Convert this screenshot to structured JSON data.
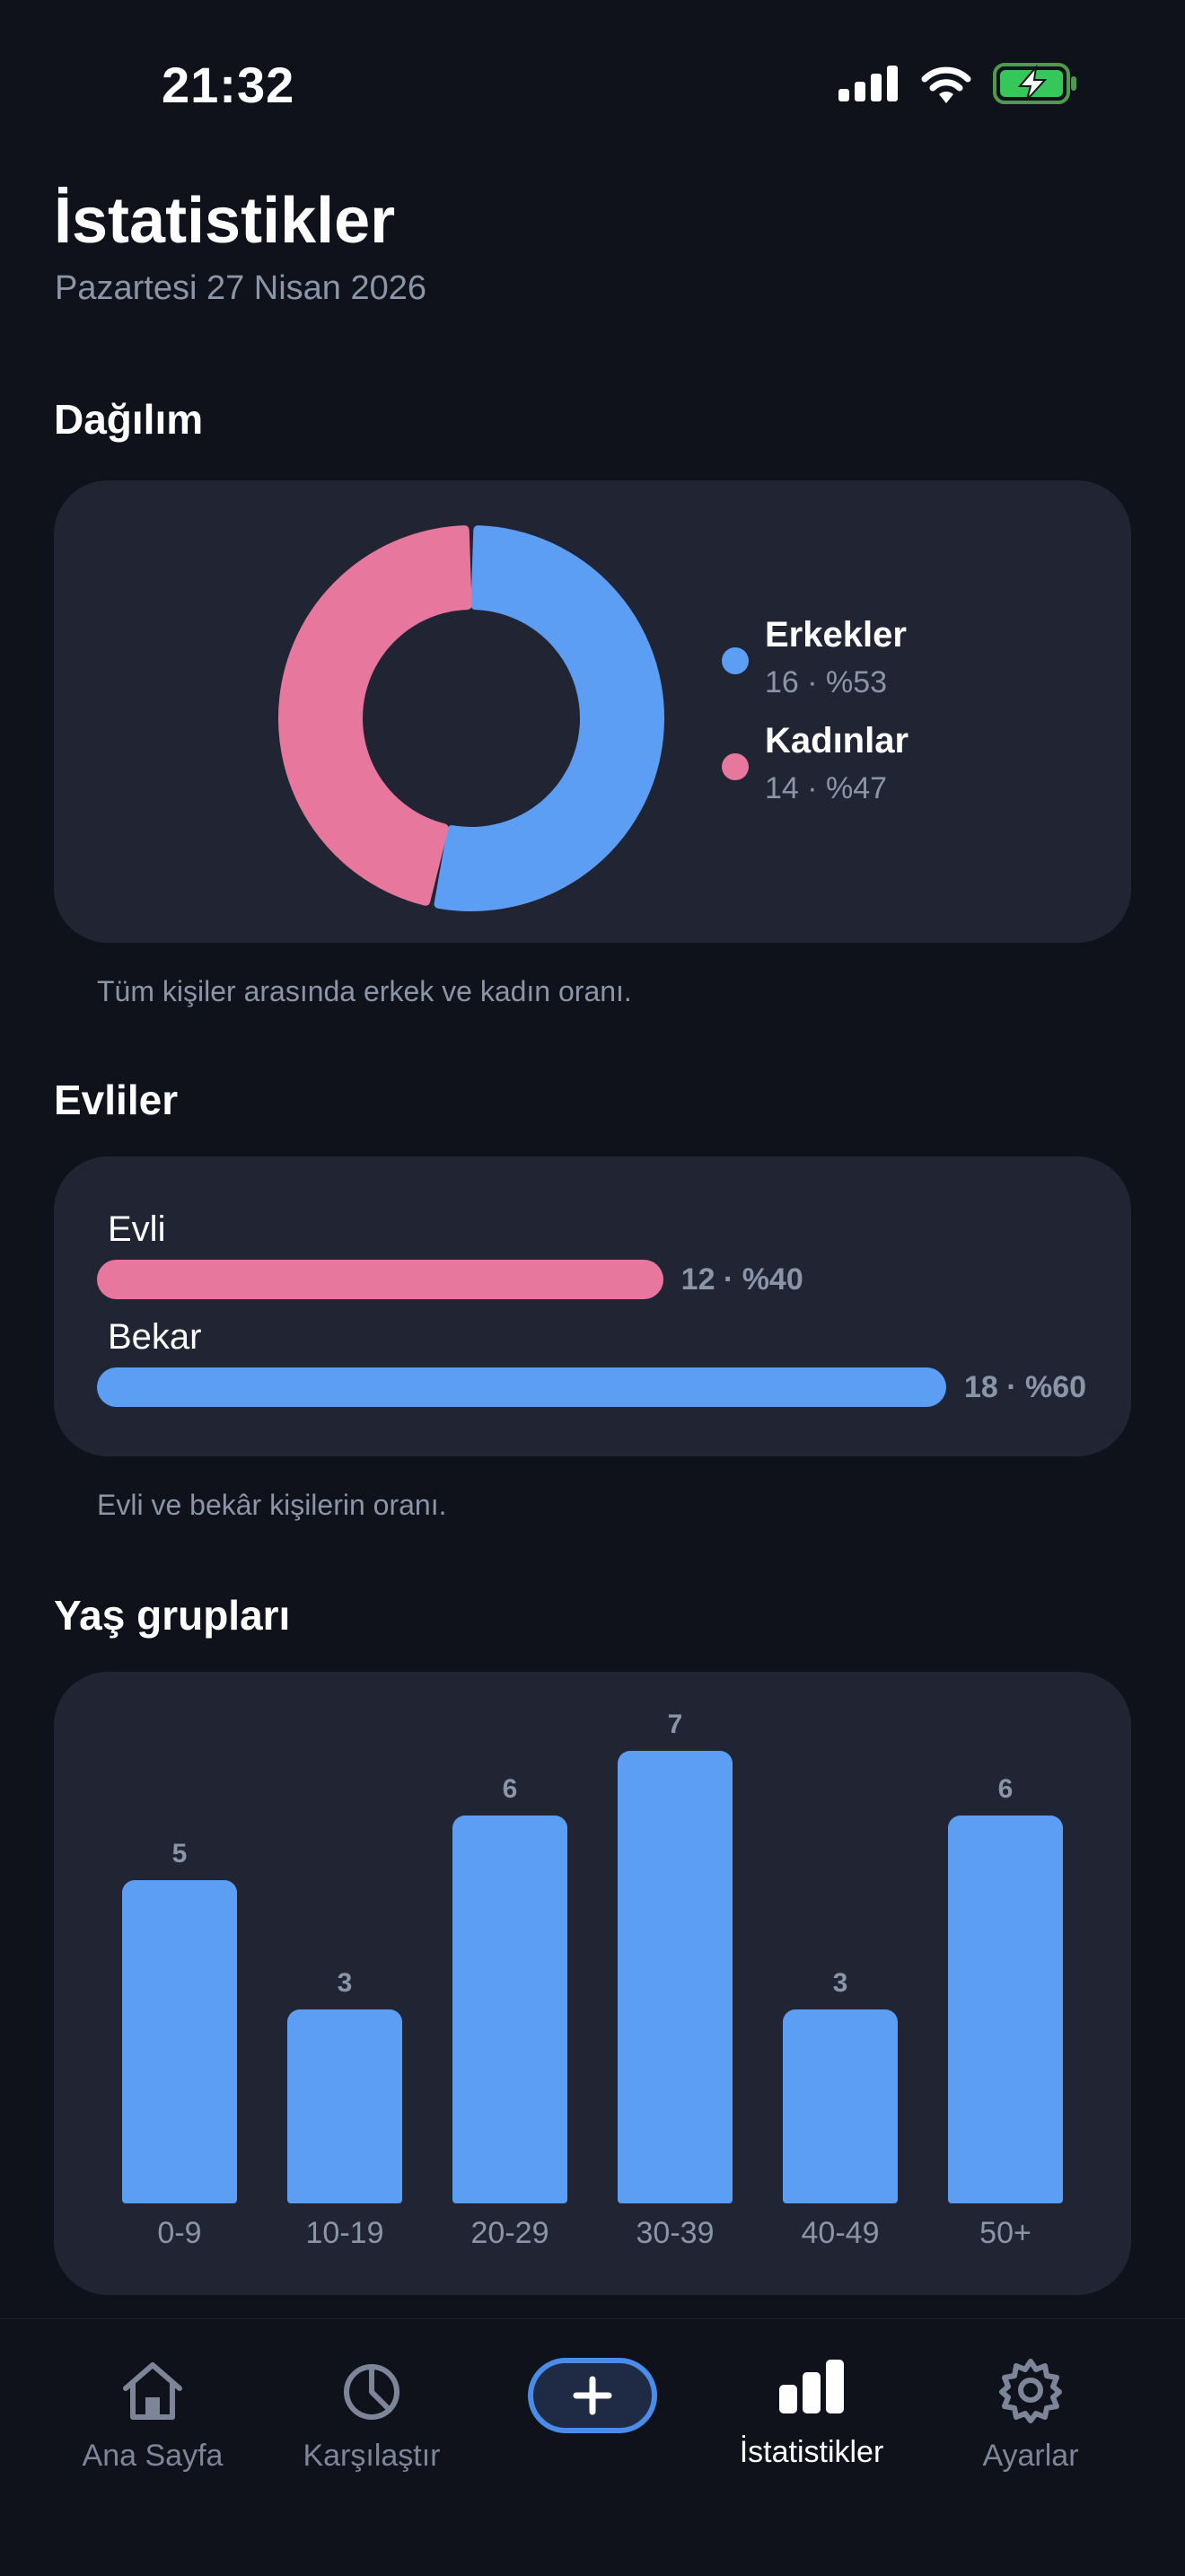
{
  "status_bar": {
    "time": "21:32"
  },
  "header": {
    "title": "İstatistikler",
    "subtitle": "Pazartesi 27 Nisan 2026"
  },
  "distribution": {
    "title": "Dağılım",
    "caption": "Tüm kişiler arasında erkek ve kadın oranı.",
    "items": [
      {
        "name": "Erkekler",
        "value": "16 · %53",
        "color": "#5d9ef5"
      },
      {
        "name": "Kadınlar",
        "value": "14 · %47",
        "color": "#e8779d"
      }
    ]
  },
  "married": {
    "title": "Evliler",
    "caption": "Evli ve bekâr kişilerin oranı.",
    "items": [
      {
        "name": "Evli",
        "value": "12 · %40",
        "color": "#e8779d"
      },
      {
        "name": "Bekar",
        "value": "18 · %60",
        "color": "#5d9ef5"
      }
    ]
  },
  "age_groups": {
    "title": "Yaş grupları"
  },
  "chart_data": [
    {
      "type": "pie",
      "categories": [
        "Erkekler",
        "Kadınlar"
      ],
      "values": [
        16,
        14
      ],
      "colors": [
        "#5d9ef5",
        "#e8779d"
      ],
      "legend_position": "right"
    },
    {
      "type": "bar",
      "orientation": "horizontal",
      "categories": [
        "Evli",
        "Bekar"
      ],
      "values": [
        12,
        18
      ],
      "percentages": [
        40,
        60
      ],
      "colors": [
        "#e8779d",
        "#5d9ef5"
      ]
    },
    {
      "type": "bar",
      "categories": [
        "0-9",
        "10-19",
        "20-29",
        "30-39",
        "40-49",
        "50+"
      ],
      "values": [
        5,
        3,
        6,
        7,
        3,
        6
      ],
      "ylim": [
        0,
        7
      ],
      "color": "#5d9ef5"
    }
  ],
  "tabbar": {
    "tabs": [
      {
        "label": "Ana Sayfa",
        "icon": "house-icon"
      },
      {
        "label": "Karşılaştır",
        "icon": "pie-chart-icon"
      },
      {
        "label": "İstatistikler",
        "icon": "bar-chart-icon",
        "active": true
      },
      {
        "label": "Ayarlar",
        "icon": "gear-icon"
      }
    ],
    "add_icon": "plus-icon"
  }
}
